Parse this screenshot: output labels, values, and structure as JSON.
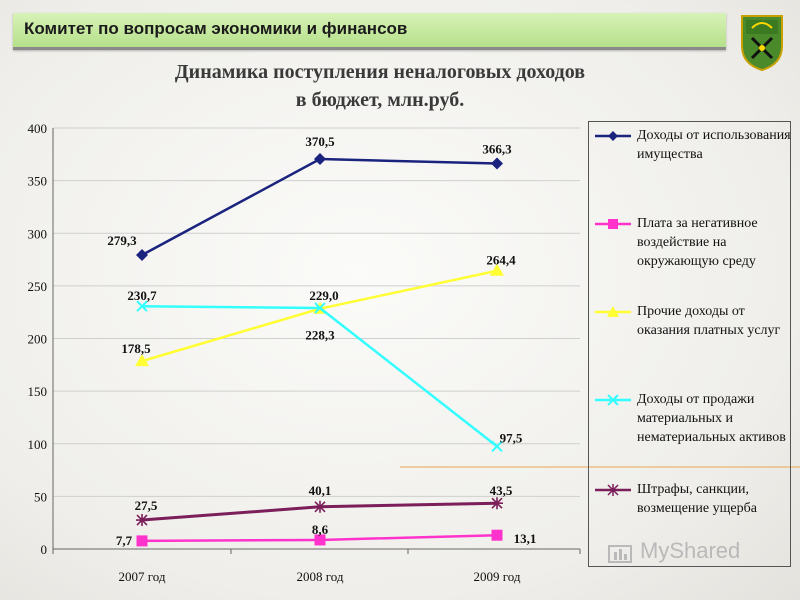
{
  "header": {
    "title": "Комитет по вопросам экономики и финансов"
  },
  "chart_data": {
    "type": "line",
    "title_line1": "Динамика поступления неналоговых доходов",
    "title_line2": "в бюджет, млн.руб.",
    "categories": [
      "2007 год",
      "2008 год",
      "2009 год"
    ],
    "ylim": [
      0,
      400
    ],
    "yticks": [
      0,
      50,
      100,
      150,
      200,
      250,
      300,
      350,
      400
    ],
    "grid": true,
    "legend_position": "right",
    "series": [
      {
        "name": "Доходы от использования имущества",
        "values": [
          279.3,
          370.5,
          366.3
        ],
        "labels": [
          "279,3",
          "370,5",
          "366,3"
        ],
        "color": "#1a237e",
        "marker": "diamond"
      },
      {
        "name": "Плата за негативное воздействие на окружающую среду",
        "values": [
          7.7,
          8.6,
          13.1
        ],
        "labels": [
          "7,7",
          "8,6",
          "13,1"
        ],
        "color": "#ff33cc",
        "marker": "square"
      },
      {
        "name": "Прочие доходы от оказания платных услуг",
        "values": [
          178.5,
          228.3,
          264.4
        ],
        "labels": [
          "178,5",
          "228,3",
          "264,4"
        ],
        "color": "#ffff33",
        "marker": "triangle"
      },
      {
        "name": "Доходы от продажи материальных и нематериальных активов",
        "values": [
          230.7,
          229.0,
          97.5
        ],
        "labels": [
          "230,7",
          "229,0",
          "97,5"
        ],
        "color": "#33ffff",
        "marker": "x"
      },
      {
        "name": "Штрафы, санкции, возмещение ущерба",
        "values": [
          27.5,
          40.1,
          43.5
        ],
        "labels": [
          "27,5",
          "40,1",
          "43,5"
        ],
        "color": "#7b1e5a",
        "marker": "star"
      }
    ]
  },
  "watermark": {
    "text": "MyShared"
  }
}
